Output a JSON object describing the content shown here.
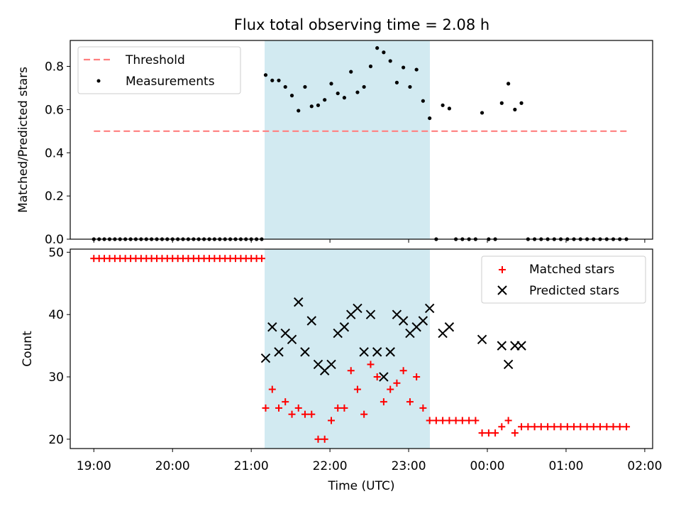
{
  "figure": {
    "title": "Flux total observing time = 2.08 h",
    "xlabel": "Time (UTC)",
    "xticks": [
      "19:00",
      "20:00",
      "21:00",
      "22:00",
      "23:00",
      "00:00",
      "01:00",
      "02:00"
    ]
  },
  "colors": {
    "threshold": "#ff7f7f",
    "measurements": "#000000",
    "matched": "#ff0000",
    "predicted": "#000000",
    "highlight_band": "#add8e6"
  },
  "chart_data": [
    {
      "type": "scatter",
      "ylabel": "Matched/Predicted stars",
      "x_unit": "hours since 19:00 UTC",
      "xlim": [
        -0.3,
        7.1
      ],
      "ylim": [
        0,
        0.92
      ],
      "yticks": [
        "0.0",
        "0.2",
        "0.4",
        "0.6",
        "0.8"
      ],
      "legend_position": "upper-left",
      "highlight_span": [
        2.17,
        4.27
      ],
      "threshold": {
        "name": "Threshold",
        "value": 0.5,
        "x_range": [
          0,
          6.8
        ]
      },
      "series": [
        {
          "name": "Measurements",
          "x": [
            0.0,
            0.067,
            0.133,
            0.2,
            0.267,
            0.333,
            0.4,
            0.467,
            0.533,
            0.6,
            0.667,
            0.733,
            0.8,
            0.867,
            0.933,
            1.0,
            1.067,
            1.133,
            1.2,
            1.267,
            1.333,
            1.4,
            1.467,
            1.533,
            1.6,
            1.667,
            1.733,
            1.8,
            1.867,
            1.933,
            2.0,
            2.067,
            2.133,
            2.183,
            2.267,
            2.35,
            2.433,
            2.517,
            2.6,
            2.683,
            2.767,
            2.85,
            2.933,
            3.017,
            3.1,
            3.183,
            3.267,
            3.35,
            3.433,
            3.517,
            3.6,
            3.683,
            3.767,
            3.85,
            3.933,
            4.017,
            4.1,
            4.183,
            4.267,
            4.35,
            4.433,
            4.517,
            4.6,
            4.683,
            4.767,
            4.85,
            4.933,
            5.017,
            5.1,
            5.183,
            5.267,
            5.35,
            5.433,
            5.517,
            5.6,
            5.683,
            5.767,
            5.85,
            5.933,
            6.017,
            6.1,
            6.183,
            6.267,
            6.35,
            6.433,
            6.517,
            6.6,
            6.683,
            6.767
          ],
          "y": [
            0,
            0,
            0,
            0,
            0,
            0,
            0,
            0,
            0,
            0,
            0,
            0,
            0,
            0,
            0,
            0,
            0,
            0,
            0,
            0,
            0,
            0,
            0,
            0,
            0,
            0,
            0,
            0,
            0,
            0,
            0,
            0,
            0,
            0.76,
            0.735,
            0.735,
            0.705,
            0.665,
            0.595,
            0.705,
            0.615,
            0.62,
            0.645,
            0.72,
            0.675,
            0.655,
            0.775,
            0.68,
            0.705,
            0.8,
            0.885,
            0.865,
            0.825,
            0.725,
            0.795,
            0.705,
            0.785,
            0.64,
            0.56,
            0,
            0.62,
            0.605,
            0,
            0,
            0,
            0,
            0.585,
            0,
            0,
            0.63,
            0.72,
            0.6,
            0.63,
            0,
            0,
            0,
            0,
            0,
            0,
            0,
            0,
            0,
            0,
            0,
            0,
            0,
            0,
            0,
            0
          ]
        }
      ]
    },
    {
      "type": "scatter",
      "ylabel": "Count",
      "x_unit": "hours since 19:00 UTC",
      "xlim": [
        -0.3,
        7.1
      ],
      "ylim": [
        18.5,
        50.5
      ],
      "yticks": [
        "20",
        "30",
        "40",
        "50"
      ],
      "legend_position": "upper-right",
      "highlight_span": [
        2.17,
        4.27
      ],
      "series": [
        {
          "name": "Matched stars",
          "marker": "plus",
          "x": [
            0.0,
            0.067,
            0.133,
            0.2,
            0.267,
            0.333,
            0.4,
            0.467,
            0.533,
            0.6,
            0.667,
            0.733,
            0.8,
            0.867,
            0.933,
            1.0,
            1.067,
            1.133,
            1.2,
            1.267,
            1.333,
            1.4,
            1.467,
            1.533,
            1.6,
            1.667,
            1.733,
            1.8,
            1.867,
            1.933,
            2.0,
            2.067,
            2.133,
            2.183,
            2.267,
            2.35,
            2.433,
            2.517,
            2.6,
            2.683,
            2.767,
            2.85,
            2.933,
            3.017,
            3.1,
            3.183,
            3.267,
            3.35,
            3.433,
            3.517,
            3.6,
            3.683,
            3.767,
            3.85,
            3.933,
            4.017,
            4.1,
            4.183,
            4.267,
            4.35,
            4.433,
            4.517,
            4.6,
            4.683,
            4.767,
            4.85,
            4.933,
            5.017,
            5.1,
            5.183,
            5.267,
            5.35,
            5.433,
            5.517,
            5.6,
            5.683,
            5.767,
            5.85,
            5.933,
            6.017,
            6.1,
            6.183,
            6.267,
            6.35,
            6.433,
            6.517,
            6.6,
            6.683,
            6.767
          ],
          "y": [
            49,
            49,
            49,
            49,
            49,
            49,
            49,
            49,
            49,
            49,
            49,
            49,
            49,
            49,
            49,
            49,
            49,
            49,
            49,
            49,
            49,
            49,
            49,
            49,
            49,
            49,
            49,
            49,
            49,
            49,
            49,
            49,
            49,
            25,
            28,
            25,
            26,
            24,
            25,
            24,
            24,
            20,
            20,
            23,
            25,
            25,
            31,
            28,
            24,
            32,
            30,
            26,
            28,
            29,
            31,
            26,
            30,
            25,
            23,
            23,
            23,
            23,
            23,
            23,
            23,
            23,
            21,
            21,
            21,
            22,
            23,
            21,
            22,
            22,
            22,
            22,
            22,
            22,
            22,
            22,
            22,
            22,
            22,
            22,
            22,
            22,
            22,
            22,
            22
          ]
        },
        {
          "name": "Predicted stars",
          "marker": "cross",
          "x": [
            2.183,
            2.267,
            2.35,
            2.433,
            2.517,
            2.6,
            2.683,
            2.767,
            2.85,
            2.933,
            3.017,
            3.1,
            3.183,
            3.267,
            3.35,
            3.433,
            3.517,
            3.6,
            3.683,
            3.767,
            3.85,
            3.933,
            4.017,
            4.1,
            4.183,
            4.267,
            4.433,
            4.517,
            4.933,
            5.183,
            5.267,
            5.35,
            5.433
          ],
          "y": [
            33,
            38,
            34,
            37,
            36,
            42,
            34,
            39,
            32,
            31,
            32,
            37,
            38,
            40,
            41,
            34,
            40,
            34,
            30,
            34,
            40,
            39,
            37,
            38,
            39,
            41,
            37,
            38,
            36,
            35,
            32,
            35,
            35
          ]
        }
      ]
    }
  ]
}
